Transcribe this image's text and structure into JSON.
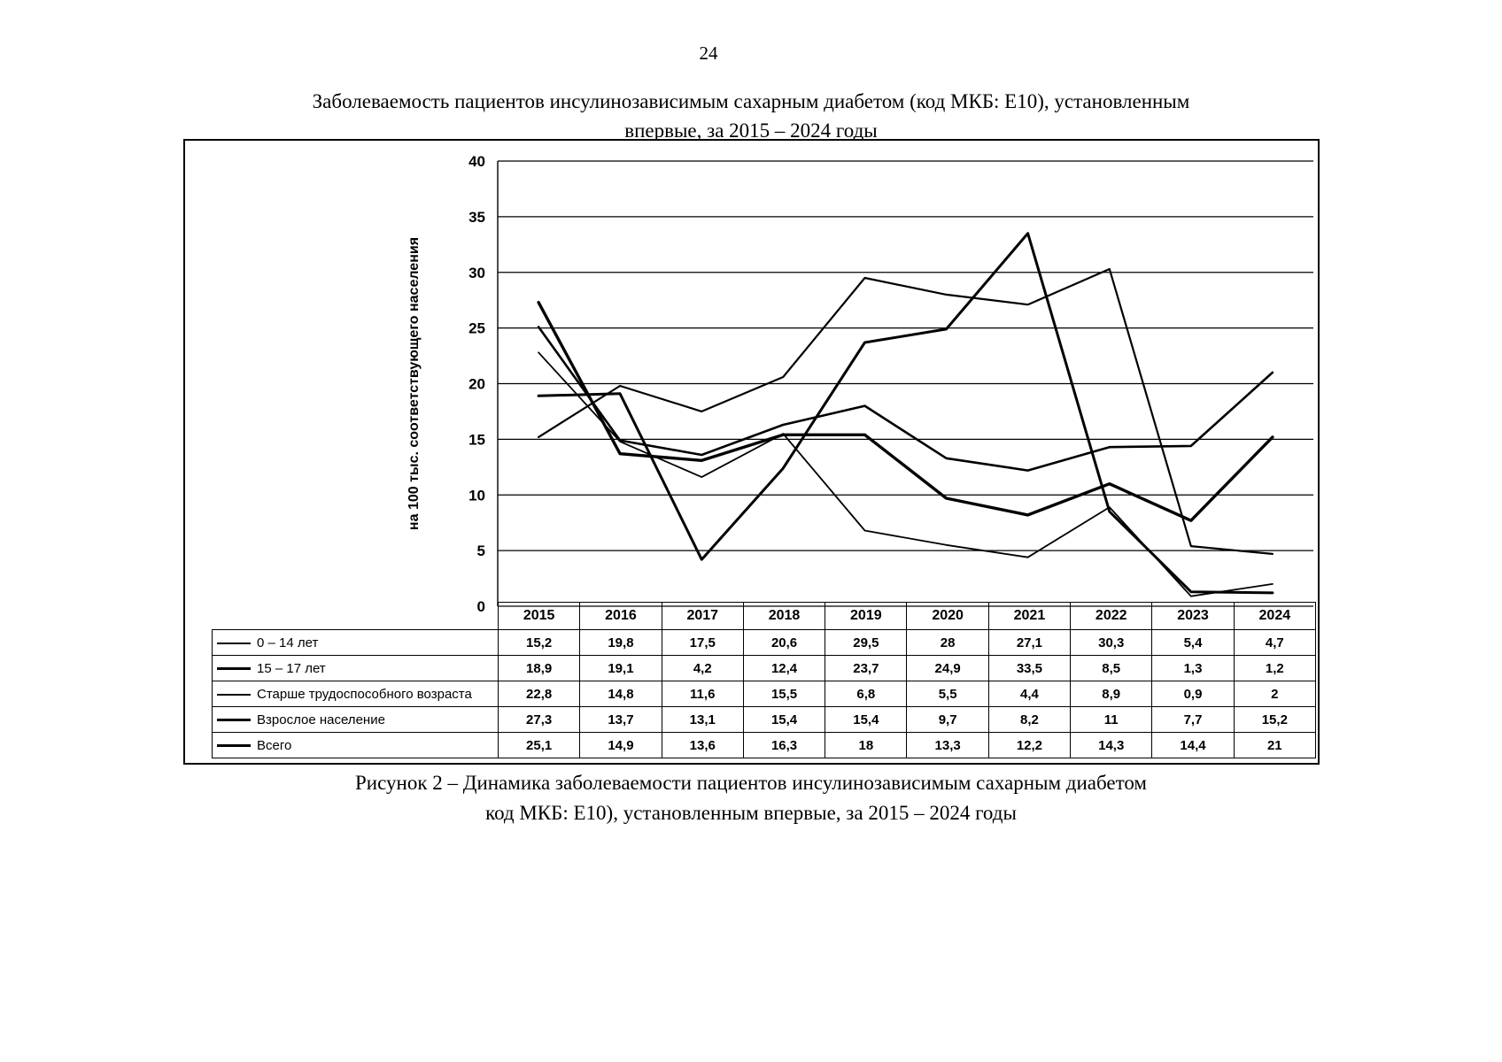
{
  "page": {
    "number": "24"
  },
  "title": {
    "line1": "Заболеваемость пациентов инсулинозависимым сахарным диабетом (код МКБ: Е10), установленным",
    "line2": "впервые, за 2015 – 2024 годы"
  },
  "caption": {
    "line1": "Рисунок 2 – Динамика заболеваемости пациентов инсулинозависимым сахарным диабетом",
    "line2": "код МКБ: Е10), установленным впервые, за 2015 – 2024 годы"
  },
  "chart_data": {
    "type": "line",
    "title": "Заболеваемость пациентов инсулинозависимым сахарным диабетом (код МКБ: Е10), установленным впервые, за 2015 – 2024 годы",
    "xlabel": "",
    "ylabel": "на 100 тыс. соответствующего населения",
    "ylim": [
      0,
      40
    ],
    "ytick_step": 5,
    "grid": true,
    "legend_position": "table-left",
    "line_color": "#000000",
    "categories": [
      "2015",
      "2016",
      "2017",
      "2018",
      "2019",
      "2020",
      "2021",
      "2022",
      "2023",
      "2024"
    ],
    "series": [
      {
        "name": "0 – 14 лет",
        "values": [
          15.2,
          19.8,
          17.5,
          20.6,
          29.5,
          28,
          27.1,
          30.3,
          5.4,
          4.7
        ],
        "display": [
          "15,2",
          "19,8",
          "17,5",
          "20,6",
          "29,5",
          "28",
          "27,1",
          "30,3",
          "5,4",
          "4,7"
        ],
        "color": "#000000",
        "width": 2.2
      },
      {
        "name": "15 – 17 лет",
        "values": [
          18.9,
          19.1,
          4.2,
          12.4,
          23.7,
          24.9,
          33.5,
          8.5,
          1.3,
          1.2
        ],
        "display": [
          "18,9",
          "19,1",
          "4,2",
          "12,4",
          "23,7",
          "24,9",
          "33,5",
          "8,5",
          "1,3",
          "1,2"
        ],
        "color": "#000000",
        "width": 3.0
      },
      {
        "name": "Старше трудоспособного возраста",
        "values": [
          22.8,
          14.8,
          11.6,
          15.5,
          6.8,
          5.5,
          4.4,
          8.9,
          0.9,
          2
        ],
        "display": [
          "22,8",
          "14,8",
          "11,6",
          "15,5",
          "6,8",
          "5,5",
          "4,4",
          "8,9",
          "0,9",
          "2"
        ],
        "color": "#000000",
        "width": 1.8
      },
      {
        "name": "Взрослое население",
        "values": [
          27.3,
          13.7,
          13.1,
          15.4,
          15.4,
          9.7,
          8.2,
          11,
          7.7,
          15.2
        ],
        "display": [
          "27,3",
          "13,7",
          "13,1",
          "15,4",
          "15,4",
          "9,7",
          "8,2",
          "11",
          "7,7",
          "15,2"
        ],
        "color": "#000000",
        "width": 3.4
      },
      {
        "name": "Всего",
        "values": [
          25.1,
          14.9,
          13.6,
          16.3,
          18,
          13.3,
          12.2,
          14.3,
          14.4,
          21
        ],
        "display": [
          "25,1",
          "14,9",
          "13,6",
          "16,3",
          "18",
          "13,3",
          "12,2",
          "14,3",
          "14,4",
          "21"
        ],
        "color": "#000000",
        "width": 2.6
      }
    ]
  }
}
